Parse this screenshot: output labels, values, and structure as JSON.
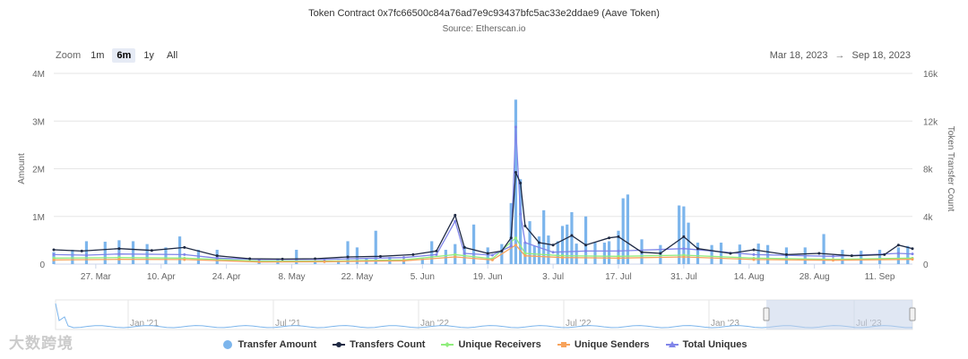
{
  "title": "Token Contract 0x7fc66500c84a76ad7e9c93437bfc5ac33e2ddae9 (Aave Token)",
  "subtitle": "Source: Etherscan.io",
  "zoom": {
    "label": "Zoom",
    "buttons": [
      "1m",
      "6m",
      "1y",
      "All"
    ],
    "active": "6m"
  },
  "range": {
    "from": "Mar 18, 2023",
    "arrow": "→",
    "to": "Sep 18, 2023"
  },
  "watermark": "大数跨境",
  "colors": {
    "transfer_amount": "#7cb5ec",
    "transfers_count": "#1f2a44",
    "unique_receivers": "#90ed7d",
    "unique_senders": "#f7a35c",
    "total_uniques": "#8085e9",
    "navigator_fill": "#c7d3ea",
    "grid": "#e6e6e6"
  },
  "legend": {
    "transfer_amount": "Transfer Amount",
    "transfers_count": "Transfers Count",
    "unique_receivers": "Unique Receivers",
    "unique_senders": "Unique Senders",
    "total_uniques": "Total Uniques"
  },
  "chart_data": {
    "type": "bar",
    "title": "Token Contract 0x7fc66500c84a76ad7e9c93437bfc5ac33e2ddae9 (Aave Token)",
    "subtitle": "Source: Etherscan.io",
    "x_start": "2023-03-18",
    "x_end": "2023-09-18",
    "x_ticks": [
      "27. Mar",
      "10. Apr",
      "24. Apr",
      "8. May",
      "22. May",
      "5. Jun",
      "19. Jun",
      "3. Jul",
      "17. Jul",
      "31. Jul",
      "14. Aug",
      "28. Aug",
      "11. Sep"
    ],
    "y_left": {
      "label": "Amount",
      "ticks": [
        "0",
        "1M",
        "2M",
        "3M",
        "4M"
      ],
      "range": [
        0,
        4000000
      ]
    },
    "y_right": {
      "label": "Token Transfer Count",
      "ticks": [
        "0",
        "4k",
        "8k",
        "12k",
        "16k"
      ],
      "range": [
        0,
        16000
      ]
    },
    "grid": true,
    "legend_position": "bottom",
    "series": [
      {
        "name": "Transfer Amount",
        "axis": "left",
        "type": "bar",
        "points": [
          [
            "2023-03-18",
            250000
          ],
          [
            "2023-03-22",
            300000
          ],
          [
            "2023-03-25",
            480000
          ],
          [
            "2023-03-29",
            470000
          ],
          [
            "2023-04-01",
            500000
          ],
          [
            "2023-04-04",
            480000
          ],
          [
            "2023-04-07",
            420000
          ],
          [
            "2023-04-11",
            350000
          ],
          [
            "2023-04-14",
            580000
          ],
          [
            "2023-04-18",
            300000
          ],
          [
            "2023-04-22",
            300000
          ],
          [
            "2023-05-01",
            80000
          ],
          [
            "2023-05-05",
            120000
          ],
          [
            "2023-05-09",
            300000
          ],
          [
            "2023-05-13",
            60000
          ],
          [
            "2023-05-18",
            80000
          ],
          [
            "2023-05-20",
            480000
          ],
          [
            "2023-05-22",
            350000
          ],
          [
            "2023-05-24",
            120000
          ],
          [
            "2023-05-26",
            700000
          ],
          [
            "2023-05-29",
            150000
          ],
          [
            "2023-06-01",
            100000
          ],
          [
            "2023-06-05",
            120000
          ],
          [
            "2023-06-07",
            480000
          ],
          [
            "2023-06-10",
            300000
          ],
          [
            "2023-06-12",
            420000
          ],
          [
            "2023-06-14",
            380000
          ],
          [
            "2023-06-16",
            830000
          ],
          [
            "2023-06-19",
            350000
          ],
          [
            "2023-06-22",
            420000
          ],
          [
            "2023-06-24",
            1280000
          ],
          [
            "2023-06-25",
            3450000
          ],
          [
            "2023-06-26",
            1780000
          ],
          [
            "2023-06-27",
            450000
          ],
          [
            "2023-06-28",
            900000
          ],
          [
            "2023-06-29",
            380000
          ],
          [
            "2023-06-30",
            580000
          ],
          [
            "2023-07-01",
            1130000
          ],
          [
            "2023-07-02",
            600000
          ],
          [
            "2023-07-04",
            480000
          ],
          [
            "2023-07-05",
            800000
          ],
          [
            "2023-07-06",
            830000
          ],
          [
            "2023-07-07",
            1090000
          ],
          [
            "2023-07-08",
            430000
          ],
          [
            "2023-07-10",
            1000000
          ],
          [
            "2023-07-12",
            450000
          ],
          [
            "2023-07-14",
            450000
          ],
          [
            "2023-07-15",
            480000
          ],
          [
            "2023-07-17",
            700000
          ],
          [
            "2023-07-18",
            1380000
          ],
          [
            "2023-07-19",
            1460000
          ],
          [
            "2023-07-22",
            520000
          ],
          [
            "2023-07-26",
            400000
          ],
          [
            "2023-07-30",
            1230000
          ],
          [
            "2023-07-31",
            1210000
          ],
          [
            "2023-08-01",
            870000
          ],
          [
            "2023-08-03",
            450000
          ],
          [
            "2023-08-06",
            400000
          ],
          [
            "2023-08-08",
            450000
          ],
          [
            "2023-08-12",
            410000
          ],
          [
            "2023-08-16",
            430000
          ],
          [
            "2023-08-18",
            400000
          ],
          [
            "2023-08-22",
            350000
          ],
          [
            "2023-08-26",
            350000
          ],
          [
            "2023-08-30",
            630000
          ],
          [
            "2023-09-03",
            300000
          ],
          [
            "2023-09-07",
            280000
          ],
          [
            "2023-09-11",
            300000
          ],
          [
            "2023-09-15",
            350000
          ],
          [
            "2023-09-17",
            380000
          ]
        ]
      },
      {
        "name": "Transfers Count",
        "axis": "right",
        "type": "line",
        "points": [
          [
            "2023-03-18",
            1200
          ],
          [
            "2023-03-24",
            1100
          ],
          [
            "2023-04-01",
            1300
          ],
          [
            "2023-04-08",
            1150
          ],
          [
            "2023-04-15",
            1400
          ],
          [
            "2023-04-22",
            700
          ],
          [
            "2023-04-29",
            450
          ],
          [
            "2023-05-06",
            420
          ],
          [
            "2023-05-13",
            450
          ],
          [
            "2023-05-20",
            600
          ],
          [
            "2023-05-27",
            650
          ],
          [
            "2023-06-03",
            800
          ],
          [
            "2023-06-08",
            1100
          ],
          [
            "2023-06-12",
            4100
          ],
          [
            "2023-06-14",
            1400
          ],
          [
            "2023-06-19",
            900
          ],
          [
            "2023-06-22",
            1100
          ],
          [
            "2023-06-24",
            2200
          ],
          [
            "2023-06-25",
            7700
          ],
          [
            "2023-06-26",
            6800
          ],
          [
            "2023-06-27",
            3200
          ],
          [
            "2023-06-30",
            1800
          ],
          [
            "2023-07-03",
            1600
          ],
          [
            "2023-07-07",
            2400
          ],
          [
            "2023-07-10",
            1600
          ],
          [
            "2023-07-15",
            2200
          ],
          [
            "2023-07-17",
            2300
          ],
          [
            "2023-07-22",
            1000
          ],
          [
            "2023-07-26",
            900
          ],
          [
            "2023-07-31",
            2300
          ],
          [
            "2023-08-03",
            1300
          ],
          [
            "2023-08-10",
            900
          ],
          [
            "2023-08-15",
            1200
          ],
          [
            "2023-08-22",
            800
          ],
          [
            "2023-08-29",
            900
          ],
          [
            "2023-09-05",
            700
          ],
          [
            "2023-09-12",
            800
          ],
          [
            "2023-09-15",
            1600
          ],
          [
            "2023-09-18",
            1300
          ]
        ]
      },
      {
        "name": "Unique Receivers",
        "axis": "right",
        "type": "line",
        "points": [
          [
            "2023-03-18",
            500
          ],
          [
            "2023-04-01",
            550
          ],
          [
            "2023-04-15",
            500
          ],
          [
            "2023-05-01",
            250
          ],
          [
            "2023-05-15",
            250
          ],
          [
            "2023-06-01",
            350
          ],
          [
            "2023-06-12",
            800
          ],
          [
            "2023-06-20",
            450
          ],
          [
            "2023-06-25",
            2200
          ],
          [
            "2023-06-27",
            900
          ],
          [
            "2023-07-05",
            700
          ],
          [
            "2023-07-17",
            650
          ],
          [
            "2023-07-31",
            750
          ],
          [
            "2023-08-15",
            500
          ],
          [
            "2023-09-01",
            400
          ],
          [
            "2023-09-18",
            500
          ]
        ]
      },
      {
        "name": "Unique Senders",
        "axis": "right",
        "type": "line",
        "points": [
          [
            "2023-03-18",
            350
          ],
          [
            "2023-04-01",
            400
          ],
          [
            "2023-04-15",
            380
          ],
          [
            "2023-05-01",
            180
          ],
          [
            "2023-05-15",
            200
          ],
          [
            "2023-06-01",
            280
          ],
          [
            "2023-06-12",
            600
          ],
          [
            "2023-06-20",
            350
          ],
          [
            "2023-06-25",
            1600
          ],
          [
            "2023-06-27",
            700
          ],
          [
            "2023-07-05",
            550
          ],
          [
            "2023-07-17",
            500
          ],
          [
            "2023-07-31",
            600
          ],
          [
            "2023-08-15",
            380
          ],
          [
            "2023-09-01",
            320
          ],
          [
            "2023-09-18",
            400
          ]
        ]
      },
      {
        "name": "Total Uniques",
        "axis": "right",
        "type": "line",
        "points": [
          [
            "2023-03-18",
            800
          ],
          [
            "2023-03-25",
            750
          ],
          [
            "2023-04-01",
            850
          ],
          [
            "2023-04-15",
            800
          ],
          [
            "2023-04-22",
            500
          ],
          [
            "2023-05-01",
            380
          ],
          [
            "2023-05-15",
            400
          ],
          [
            "2023-06-01",
            550
          ],
          [
            "2023-06-08",
            800
          ],
          [
            "2023-06-12",
            3600
          ],
          [
            "2023-06-14",
            900
          ],
          [
            "2023-06-20",
            750
          ],
          [
            "2023-06-24",
            1500
          ],
          [
            "2023-06-25",
            11500
          ],
          [
            "2023-06-26",
            4200
          ],
          [
            "2023-06-27",
            1800
          ],
          [
            "2023-07-03",
            1000
          ],
          [
            "2023-07-10",
            1100
          ],
          [
            "2023-07-17",
            1100
          ],
          [
            "2023-07-31",
            1300
          ],
          [
            "2023-08-15",
            800
          ],
          [
            "2023-09-01",
            650
          ],
          [
            "2023-09-15",
            900
          ],
          [
            "2023-09-18",
            850
          ]
        ]
      }
    ],
    "navigator": {
      "labels": [
        "Jan '21",
        "Jul '21",
        "Jan '22",
        "Jul '22",
        "Jan '23",
        "Jul '23"
      ],
      "selection": [
        "2023-03-18",
        "2023-09-18"
      ]
    }
  }
}
